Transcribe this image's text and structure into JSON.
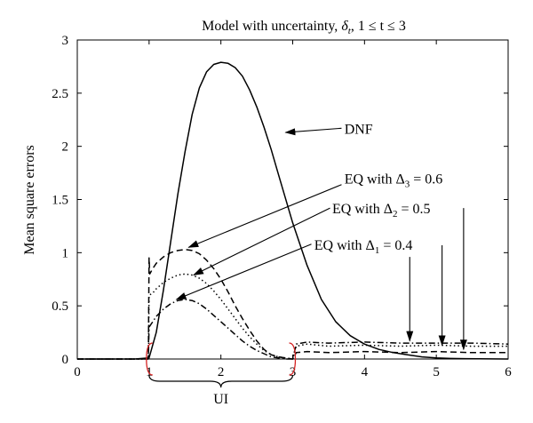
{
  "chart_data": {
    "type": "line",
    "title_parts": {
      "prefix": "Model with uncertainty, ",
      "delta": "δ",
      "delta_sub": "t",
      "suffix": ", 1 ≤ t ≤ 3"
    },
    "xlabel": "",
    "ylabel": "Mean square errors",
    "xlim": [
      0,
      6
    ],
    "ylim": [
      0,
      3
    ],
    "xticks": [
      "0",
      "1",
      "2",
      "3",
      "4",
      "5",
      "6"
    ],
    "yticks": [
      "0",
      "0.5",
      "1",
      "1.5",
      "2",
      "2.5",
      "3"
    ],
    "grid": false,
    "legend": "none",
    "series": [
      {
        "name": "DNF",
        "style": "solid",
        "x": [
          0,
          0.8,
          1.0,
          1.1,
          1.2,
          1.3,
          1.4,
          1.5,
          1.6,
          1.7,
          1.8,
          1.9,
          2.0,
          2.1,
          2.2,
          2.3,
          2.4,
          2.5,
          2.6,
          2.7,
          2.8,
          2.9,
          3.0,
          3.2,
          3.4,
          3.6,
          3.8,
          4.0,
          4.2,
          4.4,
          4.6,
          4.8,
          5.0,
          5.2,
          5.4,
          5.6,
          5.8,
          6.0
        ],
        "y": [
          0,
          0,
          0.01,
          0.25,
          0.65,
          1.1,
          1.55,
          1.95,
          2.3,
          2.55,
          2.7,
          2.77,
          2.79,
          2.78,
          2.74,
          2.66,
          2.53,
          2.37,
          2.18,
          1.97,
          1.74,
          1.51,
          1.28,
          0.88,
          0.56,
          0.35,
          0.22,
          0.14,
          0.09,
          0.06,
          0.04,
          0.02,
          0.01,
          0.005,
          0.003,
          0.002,
          0.001,
          0
        ]
      },
      {
        "name": "EQ with Δ3 = 0.6",
        "style": "dashed",
        "x": [
          0,
          0.99,
          1.0,
          1.01,
          1.05,
          1.1,
          1.2,
          1.3,
          1.4,
          1.5,
          1.6,
          1.7,
          1.8,
          1.9,
          2.0,
          2.1,
          2.2,
          2.3,
          2.4,
          2.5,
          2.6,
          2.7,
          2.8,
          2.9,
          2.99,
          3.0,
          3.05,
          3.2,
          3.5,
          4.0,
          4.5,
          5.0,
          5.5,
          6.0
        ],
        "y": [
          0,
          0,
          0.95,
          0.8,
          0.85,
          0.9,
          0.96,
          1.0,
          1.02,
          1.03,
          1.02,
          0.99,
          0.93,
          0.85,
          0.75,
          0.63,
          0.5,
          0.38,
          0.27,
          0.17,
          0.09,
          0.04,
          0.02,
          0.01,
          0.0,
          0.0,
          0.06,
          0.07,
          0.06,
          0.07,
          0.06,
          0.07,
          0.06,
          0.06
        ]
      },
      {
        "name": "EQ with Δ2 = 0.5",
        "style": "dotted",
        "x": [
          0,
          0.99,
          1.0,
          1.05,
          1.1,
          1.2,
          1.3,
          1.4,
          1.5,
          1.6,
          1.7,
          1.8,
          1.9,
          2.0,
          2.1,
          2.2,
          2.3,
          2.4,
          2.5,
          2.6,
          2.7,
          2.8,
          2.9,
          2.99,
          3.0,
          3.05,
          3.2,
          3.5,
          4.0,
          4.5,
          5.0,
          5.5,
          6.0
        ],
        "y": [
          0,
          0,
          0.6,
          0.62,
          0.66,
          0.72,
          0.76,
          0.79,
          0.8,
          0.79,
          0.76,
          0.71,
          0.64,
          0.56,
          0.47,
          0.38,
          0.29,
          0.21,
          0.14,
          0.08,
          0.04,
          0.02,
          0.01,
          0.0,
          0.0,
          0.12,
          0.14,
          0.12,
          0.13,
          0.12,
          0.13,
          0.12,
          0.12
        ]
      },
      {
        "name": "EQ with Δ1 = 0.4",
        "style": "dashdot",
        "x": [
          0,
          0.99,
          1.0,
          1.05,
          1.1,
          1.2,
          1.3,
          1.4,
          1.5,
          1.6,
          1.7,
          1.8,
          1.9,
          2.0,
          2.1,
          2.2,
          2.3,
          2.4,
          2.5,
          2.6,
          2.7,
          2.8,
          2.9,
          2.99,
          3.0,
          3.05,
          3.2,
          3.5,
          4.0,
          4.5,
          5.0,
          5.5,
          6.0
        ],
        "y": [
          0,
          0,
          0.3,
          0.35,
          0.4,
          0.47,
          0.52,
          0.55,
          0.56,
          0.55,
          0.52,
          0.47,
          0.41,
          0.35,
          0.29,
          0.23,
          0.17,
          0.12,
          0.08,
          0.05,
          0.02,
          0.01,
          0.0,
          0.0,
          0.0,
          0.14,
          0.16,
          0.15,
          0.16,
          0.15,
          0.15,
          0.15,
          0.14
        ]
      }
    ],
    "annotations": [
      {
        "id": "dnf",
        "parts": [
          "DNF"
        ],
        "text_at": [
          3.72,
          2.17
        ],
        "arrow_from": [
          3.68,
          2.17
        ],
        "arrow_to": [
          2.9,
          2.13
        ]
      },
      {
        "id": "eq3",
        "parts": [
          "EQ with Δ",
          "3",
          " = 0.6"
        ],
        "text_at": [
          3.72,
          1.7
        ],
        "arrow_from": [
          3.68,
          1.64
        ],
        "arrow_to": [
          1.55,
          1.05
        ]
      },
      {
        "id": "eq2",
        "parts": [
          "EQ with Δ",
          "2",
          " = 0.5"
        ],
        "text_at": [
          3.55,
          1.42
        ],
        "arrow_from": [
          3.52,
          1.42
        ],
        "arrow_to": [
          1.62,
          0.79
        ]
      },
      {
        "id": "eq1",
        "parts": [
          "EQ with Δ",
          "1",
          " = 0.4"
        ],
        "text_at": [
          3.3,
          1.08
        ],
        "arrow_from": [
          3.26,
          1.08
        ],
        "arrow_to": [
          1.38,
          0.56
        ]
      }
    ],
    "vertical_arrows": [
      {
        "id": "arr-eq1",
        "x": 4.63,
        "y_from": 0.96,
        "y_to": 0.17
      },
      {
        "id": "arr-eq2",
        "x": 5.08,
        "y_from": 1.07,
        "y_to": 0.13
      },
      {
        "id": "arr-eq3",
        "x": 5.38,
        "y_from": 1.42,
        "y_to": 0.09
      }
    ],
    "interval": {
      "label": "UI",
      "x_start": 1,
      "x_end": 3
    }
  },
  "colors": {
    "lines": "#000000",
    "bracket": "#d42020"
  }
}
